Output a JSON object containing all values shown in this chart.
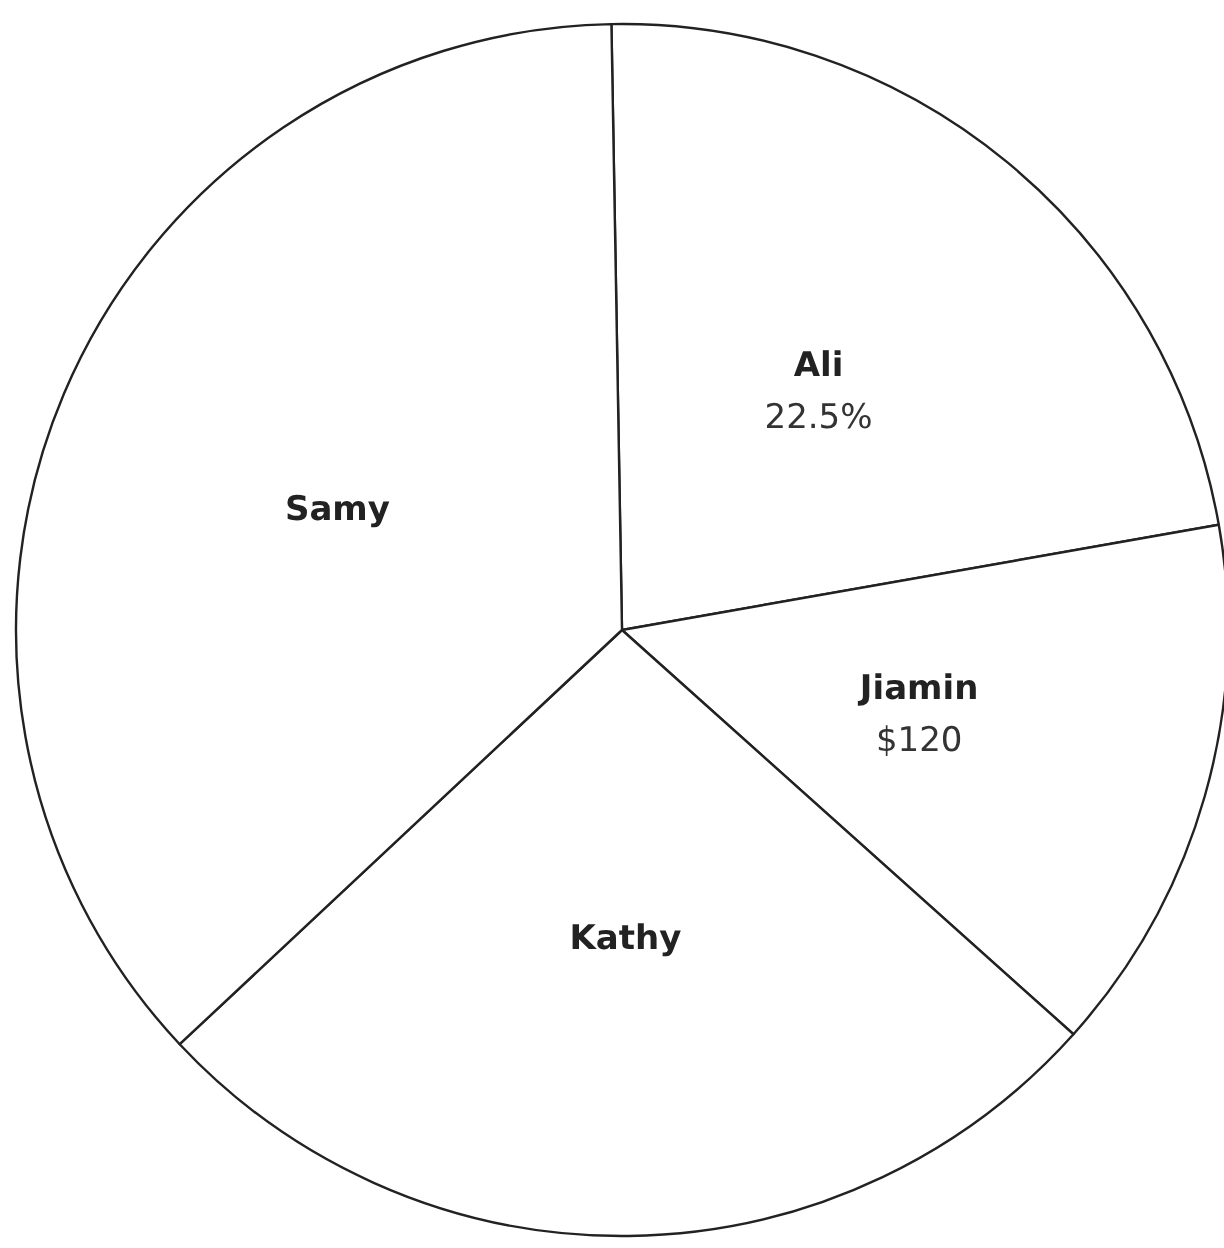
{
  "chart_data": {
    "type": "pie",
    "categories": [
      "Ali",
      "Jiamin",
      "Kathy",
      "Samy"
    ],
    "values": [
      22.5,
      14.4,
      26.4,
      36.7
    ],
    "value_labels": [
      "22.5%",
      null,
      null,
      null
    ],
    "annotations": [
      {
        "text": "$120",
        "x": "Jiamin"
      }
    ],
    "colors": [
      "#ffffff",
      "#ffffff",
      "#ffffff",
      "#ffffff"
    ],
    "legend": false
  }
}
